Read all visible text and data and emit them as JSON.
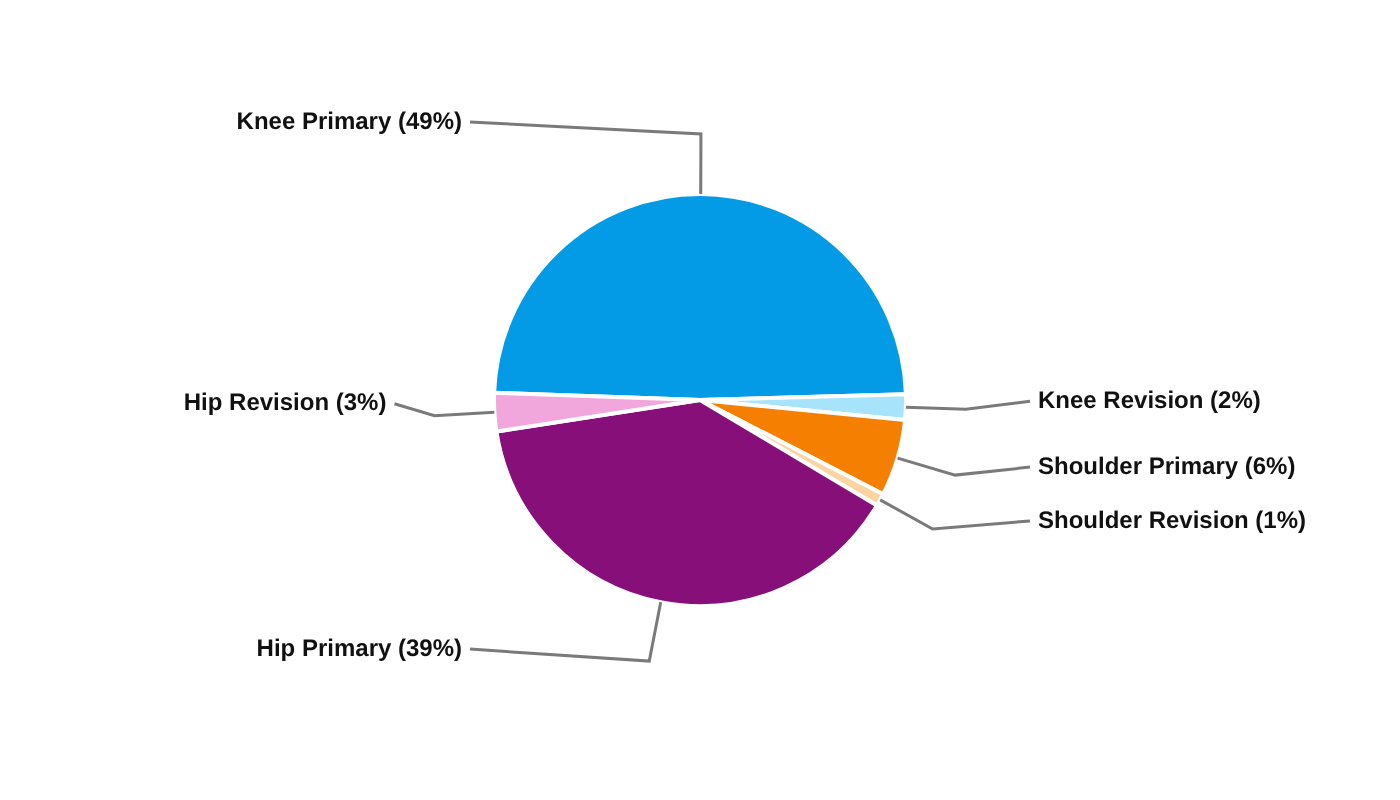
{
  "chart_data": {
    "type": "pie",
    "categories": [
      "Knee Primary (49%)",
      "Knee Revision (2%)",
      "Shoulder Primary (6%)",
      "Shoulder Revision (1%)",
      "Hip Primary (39%)",
      "Hip Revision (3%)"
    ],
    "values": [
      49,
      2,
      6,
      1,
      39,
      3
    ],
    "colors": [
      "#039be5",
      "#a7e4fb",
      "#f57f00",
      "#fcd4a2",
      "#870f79",
      "#f1a7dc"
    ],
    "legend": false
  }
}
